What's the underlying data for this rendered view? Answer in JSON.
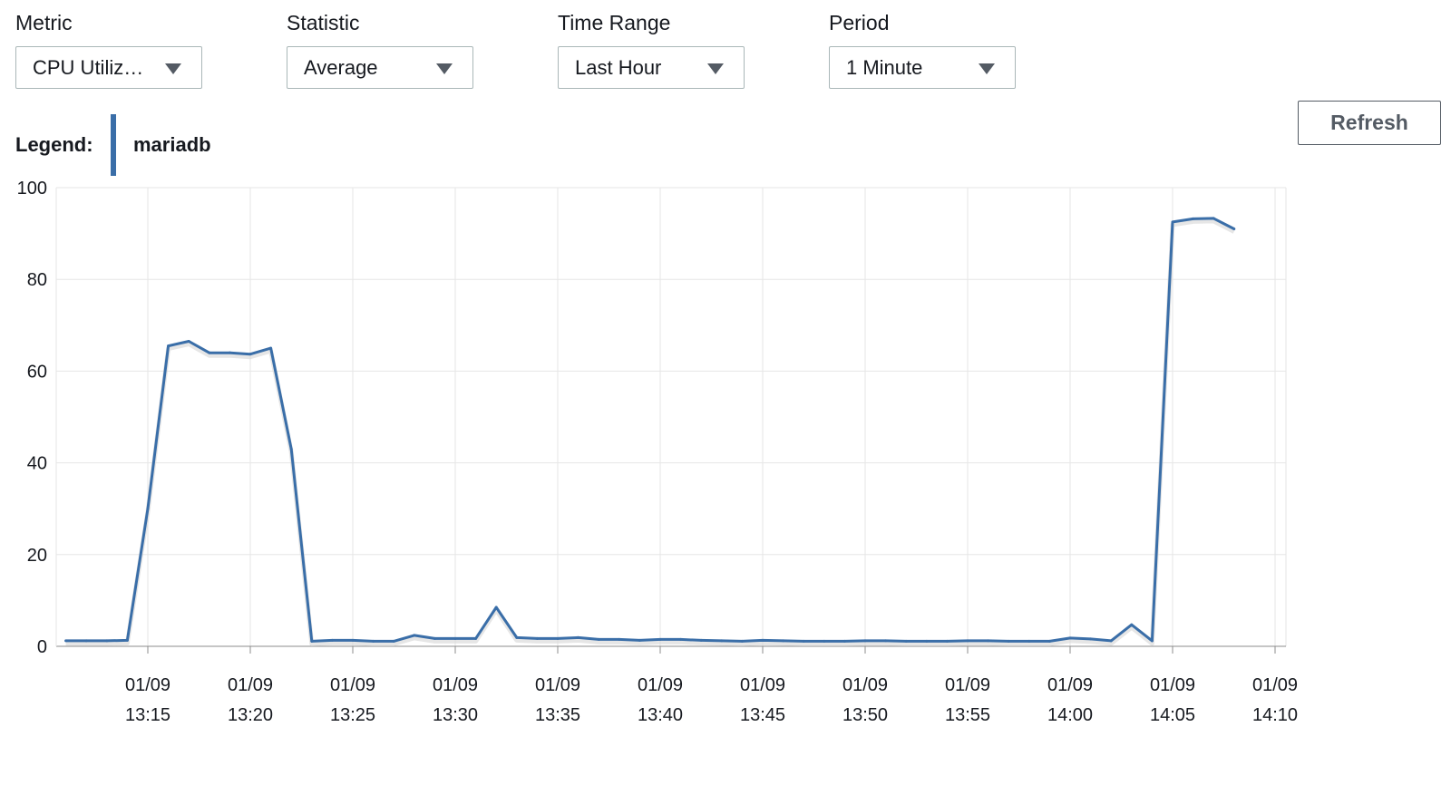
{
  "controls": {
    "metric": {
      "label": "Metric",
      "value": "CPU Utiliz…"
    },
    "statistic": {
      "label": "Statistic",
      "value": "Average"
    },
    "time_range": {
      "label": "Time Range",
      "value": "Last Hour"
    },
    "period": {
      "label": "Period",
      "value": "1 Minute"
    }
  },
  "refresh_label": "Refresh",
  "legend": {
    "title": "Legend:",
    "series_name": "mariadb",
    "color": "#3a6ea8"
  },
  "chart_data": {
    "type": "line",
    "ylim": [
      0,
      100
    ],
    "yticks": [
      0,
      20,
      40,
      60,
      80,
      100
    ],
    "x_start": "13:11",
    "x_end": "14:10",
    "xticks": [
      {
        "date": "01/09",
        "time": "13:15"
      },
      {
        "date": "01/09",
        "time": "13:20"
      },
      {
        "date": "01/09",
        "time": "13:25"
      },
      {
        "date": "01/09",
        "time": "13:30"
      },
      {
        "date": "01/09",
        "time": "13:35"
      },
      {
        "date": "01/09",
        "time": "13:40"
      },
      {
        "date": "01/09",
        "time": "13:45"
      },
      {
        "date": "01/09",
        "time": "13:50"
      },
      {
        "date": "01/09",
        "time": "13:55"
      },
      {
        "date": "01/09",
        "time": "14:00"
      },
      {
        "date": "01/09",
        "time": "14:05"
      },
      {
        "date": "01/09",
        "time": "14:10"
      }
    ],
    "grid": true,
    "series": [
      {
        "name": "mariadb",
        "color": "#3a6ea8",
        "x": [
          "13:11",
          "13:12",
          "13:13",
          "13:14",
          "13:15",
          "13:16",
          "13:17",
          "13:18",
          "13:19",
          "13:20",
          "13:21",
          "13:22",
          "13:23",
          "13:24",
          "13:25",
          "13:26",
          "13:27",
          "13:28",
          "13:29",
          "13:30",
          "13:31",
          "13:32",
          "13:33",
          "13:34",
          "13:35",
          "13:36",
          "13:37",
          "13:38",
          "13:39",
          "13:40",
          "13:41",
          "13:42",
          "13:43",
          "13:44",
          "13:45",
          "13:46",
          "13:47",
          "13:48",
          "13:49",
          "13:50",
          "13:51",
          "13:52",
          "13:53",
          "13:54",
          "13:55",
          "13:56",
          "13:57",
          "13:58",
          "13:59",
          "14:00",
          "14:01",
          "14:02",
          "14:03",
          "14:04",
          "14:05",
          "14:06",
          "14:07",
          "14:08"
        ],
        "values": [
          1.2,
          1.2,
          1.2,
          1.3,
          30,
          65.5,
          66.5,
          64,
          64,
          63.7,
          65,
          43,
          1.1,
          1.3,
          1.3,
          1.1,
          1.1,
          2.4,
          1.7,
          1.7,
          1.7,
          8.5,
          1.9,
          1.7,
          1.7,
          1.9,
          1.5,
          1.5,
          1.3,
          1.5,
          1.5,
          1.3,
          1.2,
          1.1,
          1.3,
          1.2,
          1.1,
          1.1,
          1.1,
          1.2,
          1.2,
          1.1,
          1.1,
          1.1,
          1.2,
          1.2,
          1.1,
          1.1,
          1.1,
          1.8,
          1.6,
          1.2,
          4.7,
          1.2,
          92.5,
          93.2,
          93.3,
          91
        ]
      }
    ]
  }
}
